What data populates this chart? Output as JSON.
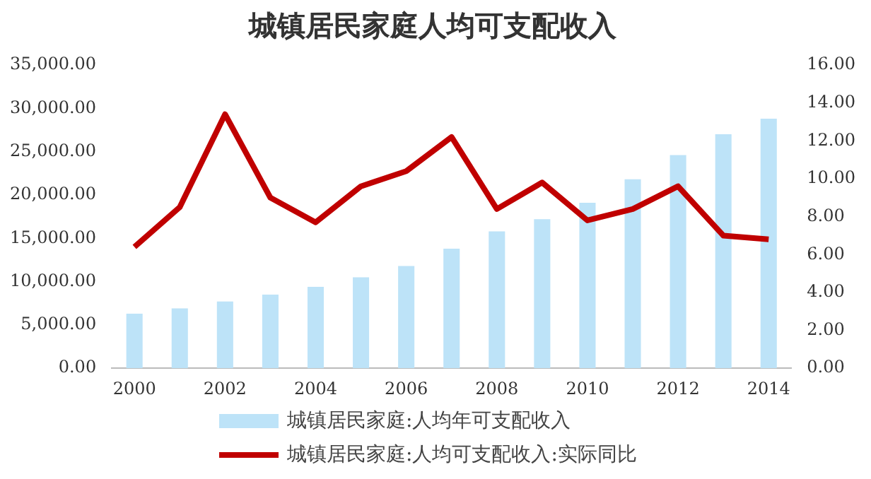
{
  "chart_data": {
    "type": "bar",
    "title": "城镇居民家庭人均可支配收入",
    "categories": [
      "2000",
      null,
      "2002",
      null,
      "2004",
      null,
      "2006",
      null,
      "2008",
      null,
      "2010",
      null,
      "2012",
      null,
      "2014"
    ],
    "series": [
      {
        "name": "城镇居民家庭:人均年可支配收入",
        "color": "#bde3f8",
        "values": [
          6300,
          6900,
          7700,
          8500,
          9400,
          10500,
          11800,
          13800,
          15800,
          17200,
          19100,
          21800,
          24600,
          27000,
          28800
        ]
      },
      {
        "name": "城镇居民家庭:人均可支配收入:实际同比",
        "type": "line",
        "axis": "y2",
        "color": "#c00000",
        "values": [
          6.4,
          8.5,
          13.4,
          9.0,
          7.7,
          9.6,
          10.4,
          12.2,
          8.4,
          9.8,
          7.8,
          8.4,
          9.6,
          7.0,
          6.8
        ]
      }
    ],
    "ylim": [
      0,
      35000
    ],
    "yticks": [
      {
        "value": 0,
        "label": "0.00"
      },
      {
        "value": 5000,
        "label": "5,000.00"
      },
      {
        "value": 10000,
        "label": "10,000.00"
      },
      {
        "value": 15000,
        "label": "15,000.00"
      },
      {
        "value": 20000,
        "label": "20,000.00"
      },
      {
        "value": 25000,
        "label": "25,000.00"
      },
      {
        "value": 30000,
        "label": "30,000.00"
      },
      {
        "value": 35000,
        "label": "35,000.00"
      }
    ],
    "y2lim": [
      0,
      16
    ],
    "y2ticks": [
      {
        "value": 0,
        "label": "0.00"
      },
      {
        "value": 2,
        "label": "2.00"
      },
      {
        "value": 4,
        "label": "4.00"
      },
      {
        "value": 6,
        "label": "6.00"
      },
      {
        "value": 8,
        "label": "8.00"
      },
      {
        "value": 10,
        "label": "10.00"
      },
      {
        "value": 12,
        "label": "12.00"
      },
      {
        "value": 14,
        "label": "14.00"
      },
      {
        "value": 16,
        "label": "16.00"
      }
    ],
    "grid": false,
    "legend": "bottom",
    "marker": "none",
    "line_style": "solid"
  }
}
